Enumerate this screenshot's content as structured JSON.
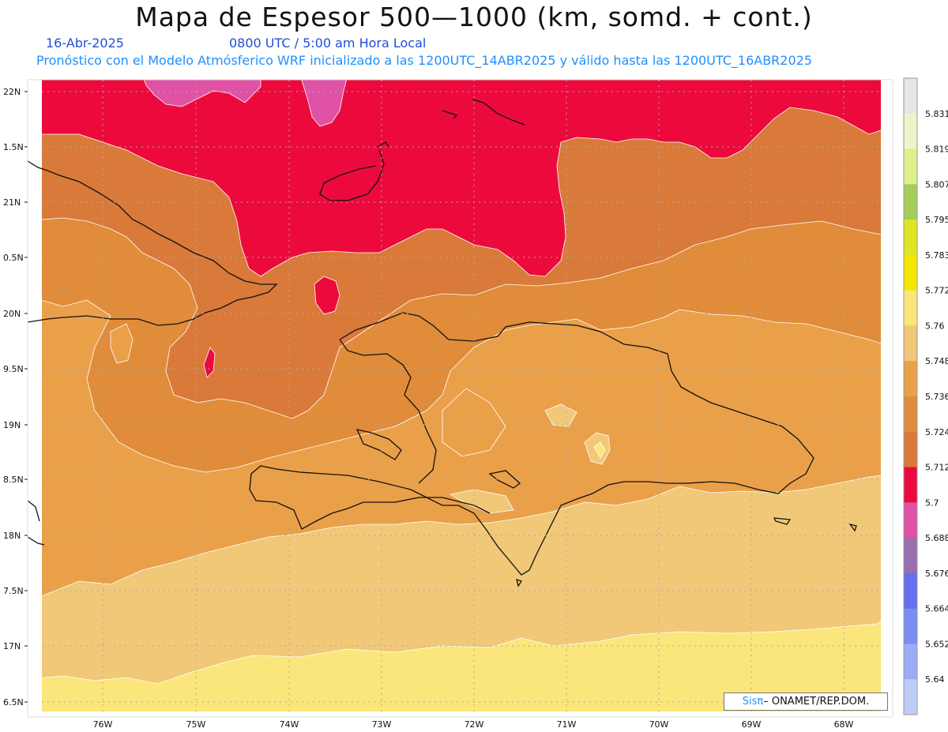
{
  "header": {
    "title": "Mapa de Espesor 500—1000 (km, somd. + cont.)",
    "date": "16-Abr-2025",
    "time": "0800 UTC / 5:00 am Hora Local",
    "description": "Pronóstico con el Modelo Atmósferico WRF inicializado a las 1200UTC_14ABR2025 y válido hasta las  1200UTC_16ABR2025"
  },
  "credit": {
    "brand": "Sisπ",
    "text": "– ONAMET/REP.DOM."
  },
  "axes": {
    "lat_labels": [
      "22N",
      "1.5N",
      "21N",
      "0.5N",
      "20N",
      "9.5N",
      "19N",
      "8.5N",
      "18N",
      "7.5N",
      "17N",
      "6.5N"
    ],
    "lon_labels": [
      "76W",
      "75W",
      "74W",
      "73W",
      "72W",
      "71W",
      "70W",
      "69W",
      "68W"
    ]
  },
  "legend": {
    "levels": [
      "5.831",
      "5.819",
      "5.807",
      "5.795",
      "5.783",
      "5.772",
      "5.76",
      "5.748",
      "5.736",
      "5.724",
      "5.712",
      "5.7",
      "5.688",
      "5.676",
      "5.664",
      "5.652",
      "5.64"
    ],
    "colors": [
      "#e6e6e6",
      "#eef4c8",
      "#dcf08c",
      "#a6cd5a",
      "#dde61e",
      "#f5e600",
      "#fae67a",
      "#f0c878",
      "#eaa049",
      "#e08c3a",
      "#d97a3a",
      "#ec0a3c",
      "#e052a5",
      "#9a6fb0",
      "#6470f0",
      "#7b8cf5",
      "#9aacf7",
      "#c0ccf8"
    ]
  },
  "map": {
    "colors": {
      "magenta": "#e052a5",
      "red": "#ec0a3c",
      "dark_orange": "#d97a3a",
      "orange": "#e08c3a",
      "light_orange": "#eaa049",
      "tan": "#f0c878",
      "yellow": "#fae67a"
    }
  }
}
